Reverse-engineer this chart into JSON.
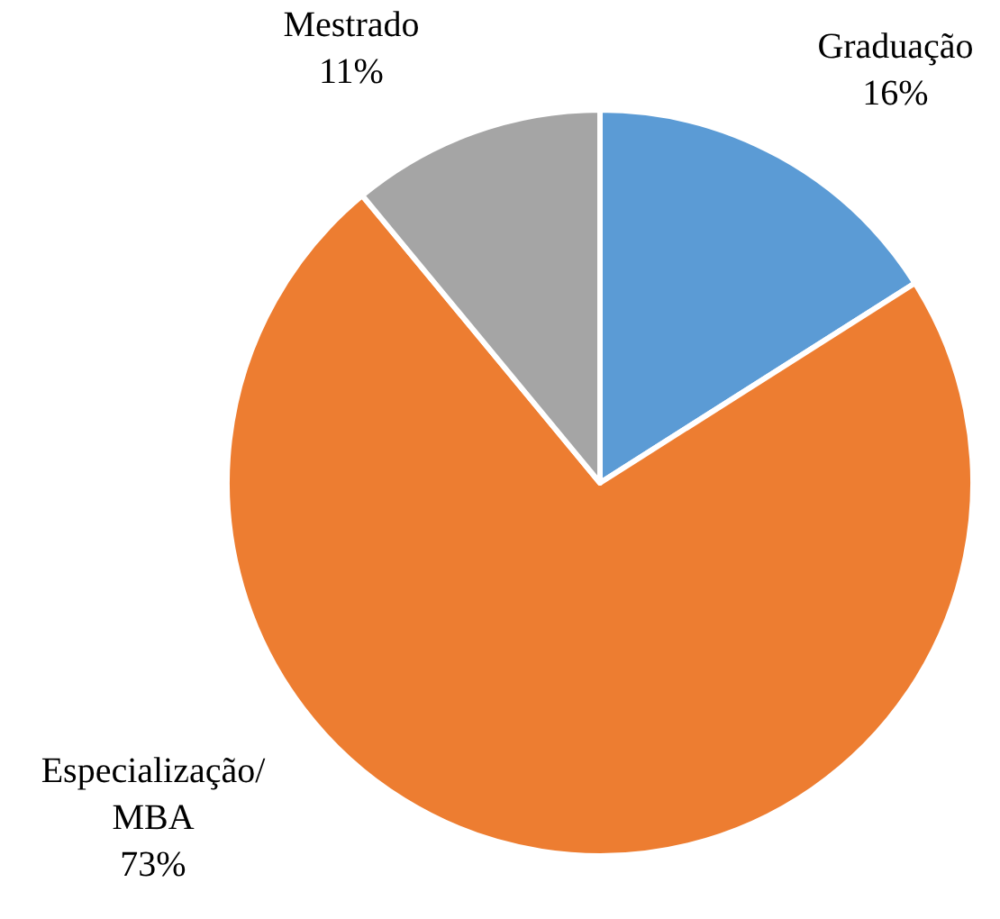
{
  "chart_data": {
    "type": "pie",
    "categories": [
      "Graduação",
      "Especialização/MBA",
      "Mestrado"
    ],
    "values": [
      16,
      73,
      11
    ],
    "colors": [
      "#5b9bd5",
      "#ed7d31",
      "#a5a5a5"
    ],
    "value_labels": [
      "16%",
      "73%",
      "11%"
    ]
  }
}
